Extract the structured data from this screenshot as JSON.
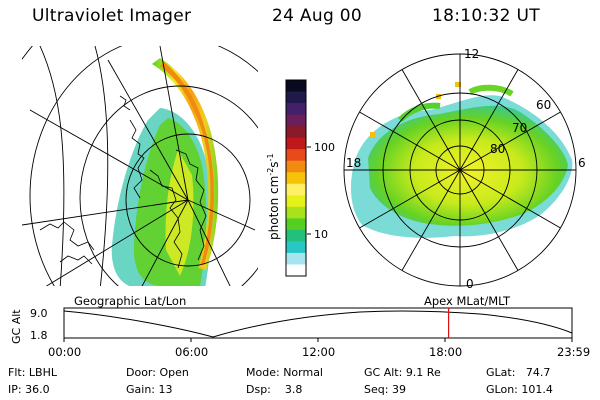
{
  "header": {
    "instrument": "Ultraviolet Imager",
    "date": "24 Aug 00",
    "time": "18:10:32 UT"
  },
  "colorbar": {
    "unit_label": "photon cm",
    "unit_exp1": "-2",
    "unit_mid": "s",
    "unit_exp2": "-1",
    "ticks": [
      "100",
      "10"
    ],
    "colors": [
      "#0a0a1e",
      "#1f1a4a",
      "#44206a",
      "#6a1f5a",
      "#8a1a2a",
      "#c01818",
      "#e84a1a",
      "#f38a10",
      "#f7c20a",
      "#fff066",
      "#e6f11a",
      "#a8e21a",
      "#55d022",
      "#22c07a",
      "#28c6c4",
      "#a6e4f0",
      "#ffffff"
    ]
  },
  "left_panel": {
    "label": "Geographic Lat/Lon"
  },
  "right_panel": {
    "label": "Apex MLat/MLT",
    "mlt_labels": [
      "12",
      "18",
      "6",
      "0"
    ],
    "mlat_labels": [
      "60",
      "70",
      "80"
    ]
  },
  "timeline": {
    "axis_title": "GC Alt",
    "y_ticks": [
      "9.0",
      "1.8"
    ],
    "x_ticks": [
      "00:00",
      "06:00",
      "12:00",
      "18:00",
      "23:59"
    ],
    "current_hour": 18.17,
    "marker_color": "#e01010"
  },
  "status": {
    "flt_label": "Flt:",
    "flt_value": "LBHL",
    "ip_label": "IP:",
    "ip_value": "36.0",
    "door_label": "Door:",
    "door_value": "Open",
    "gain_label": "Gain:",
    "gain_value": "13",
    "mode_label": "Mode:",
    "mode_value": "Normal",
    "dsp_label": "Dsp:",
    "dsp_value": "3.8",
    "gcalt_label": "GC Alt:",
    "gcalt_value": "9.1 Re",
    "seq_label": "Seq:",
    "seq_value": "39",
    "glat_label": "GLat:",
    "glat_value": "74.7",
    "glon_label": "GLon:",
    "glon_value": "101.4"
  }
}
